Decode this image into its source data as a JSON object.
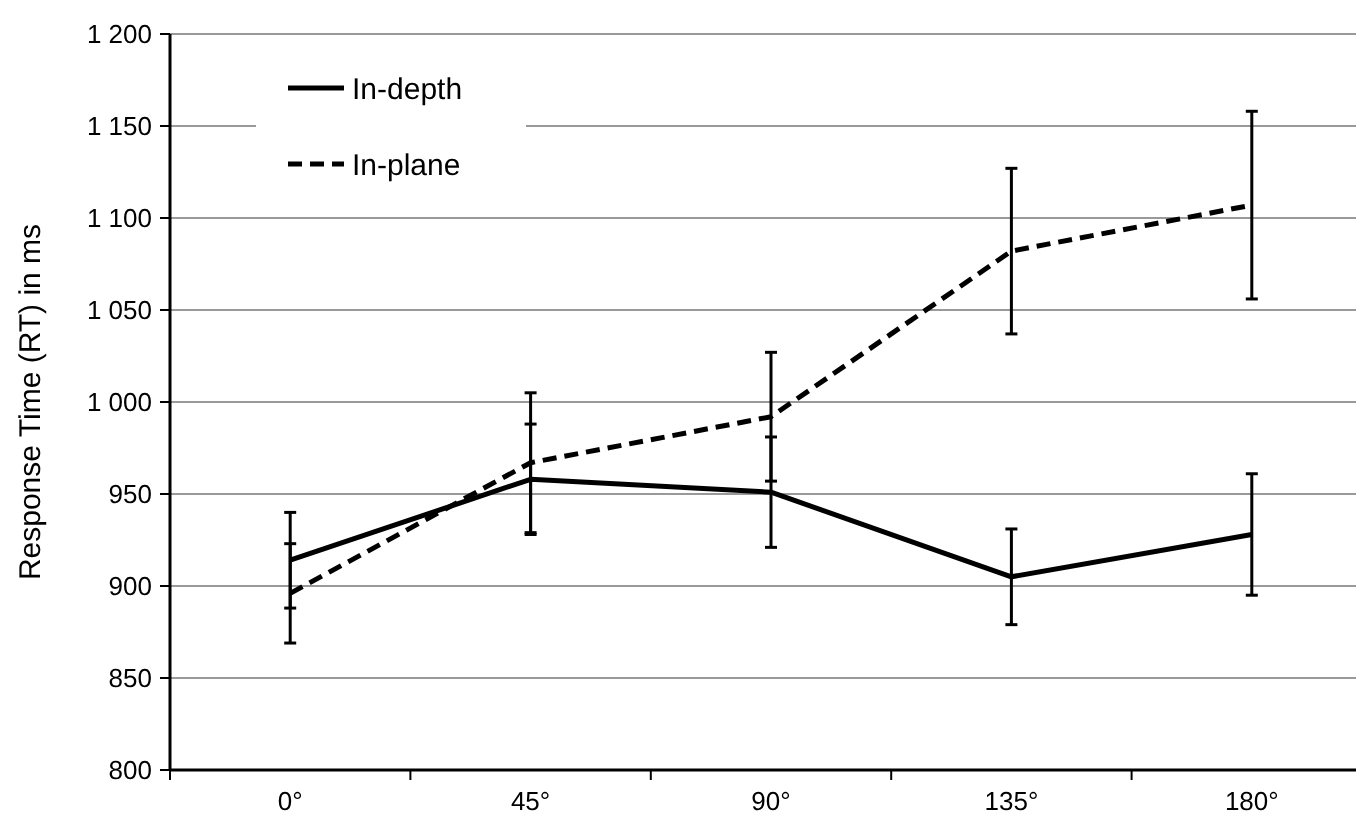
{
  "chart_data": {
    "type": "line",
    "ylabel": "Response Time (RT) in ms",
    "categories": [
      "0°",
      "45°",
      "90°",
      "135°",
      "180°"
    ],
    "ylim": [
      800,
      1200
    ],
    "yticks": [
      800,
      850,
      900,
      950,
      {
        "value": 1000,
        "label": "1 000"
      },
      {
        "value": 1050,
        "label": "1 050"
      },
      {
        "value": 1100,
        "label": "1 100"
      },
      {
        "value": 1150,
        "label": "1 150"
      },
      {
        "value": 1200,
        "label": "1 200"
      }
    ],
    "grid": "y",
    "legend": "top left",
    "marker": "none",
    "series": [
      {
        "name": "In-depth",
        "color": "#000000",
        "line_style": "solid",
        "values": [
          914,
          958,
          951,
          905,
          928
        ],
        "errors": [
          26,
          30,
          30,
          26,
          33
        ]
      },
      {
        "name": "In-plane",
        "color": "#000000",
        "line_style": "dashed",
        "values": [
          896,
          967,
          992,
          1082,
          1107
        ],
        "errors": [
          27,
          38,
          35,
          45,
          51
        ]
      }
    ]
  }
}
